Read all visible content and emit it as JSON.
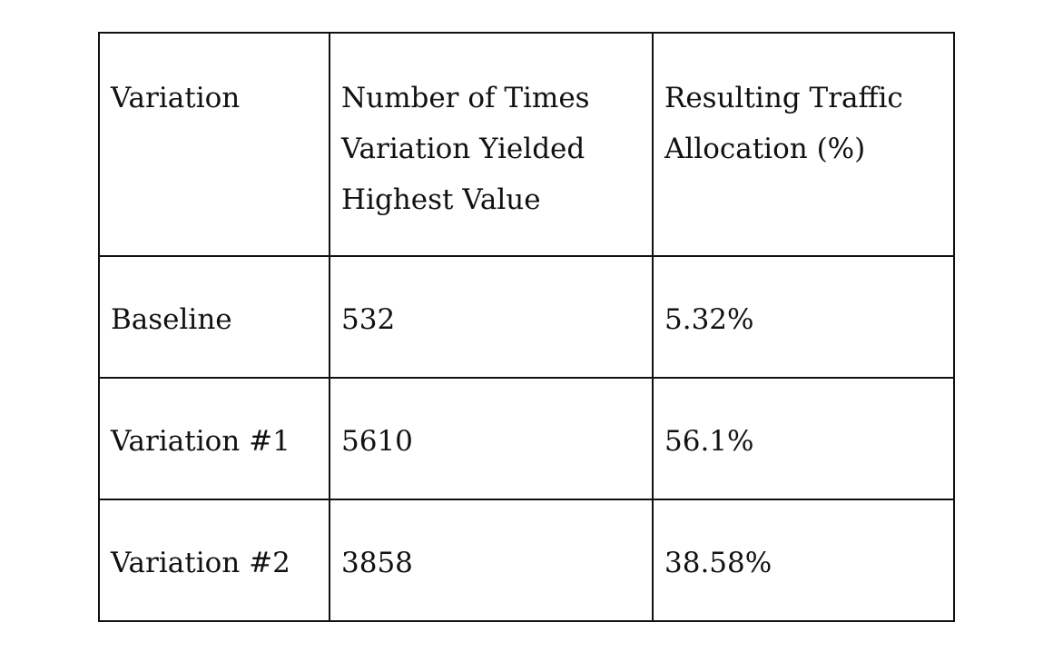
{
  "table": {
    "headers": [
      "Variation",
      "Number of Times Variation Yielded Highest Value",
      "Resulting Traffic Allocation (%)"
    ],
    "rows": [
      {
        "variation": "Baseline",
        "times_highest": "532",
        "allocation": "5.32%"
      },
      {
        "variation": "Variation #1",
        "times_highest": "5610",
        "allocation": "56.1%"
      },
      {
        "variation": "Variation #2",
        "times_highest": "3858",
        "allocation": "38.58%"
      }
    ]
  }
}
